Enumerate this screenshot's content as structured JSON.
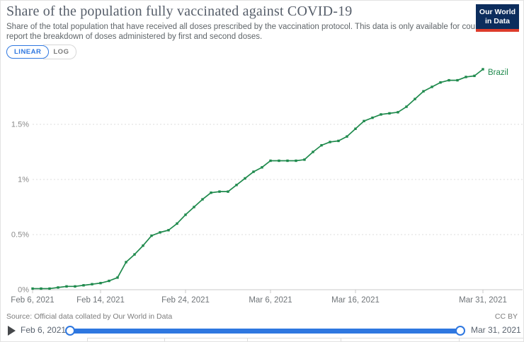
{
  "header": {
    "title": "Share of the population fully vaccinated against COVID-19",
    "subtitle_lines": [
      "Share of the total population that have received all doses prescribed by the vaccination protocol. This data is only available for countries which",
      "report the breakdown of doses administered by first and second doses."
    ],
    "logo": {
      "line1": "Our World",
      "line2": "in Data",
      "bg": "#0c2d5d",
      "accent": "#dd3b2b"
    }
  },
  "controls": {
    "linear_label": "LINEAR",
    "log_label": "LOG",
    "active_scale": "LINEAR"
  },
  "chart_data": {
    "type": "line",
    "title": "Share of the population fully vaccinated against COVID-19",
    "xlabel": "",
    "ylabel": "",
    "ylim": [
      0,
      2.05
    ],
    "grid": true,
    "grid_color": "#dcdcdc",
    "axis_color": "#c8c8c8",
    "x_range_days": 53,
    "yticks": [
      {
        "value": 0,
        "label": "0%"
      },
      {
        "value": 0.5,
        "label": "0.5%"
      },
      {
        "value": 1,
        "label": "1%"
      },
      {
        "value": 1.5,
        "label": "1.5%"
      }
    ],
    "xticks": [
      {
        "day": 0,
        "label": "Feb 6, 2021"
      },
      {
        "day": 8,
        "label": "Feb 14, 2021"
      },
      {
        "day": 18,
        "label": "Feb 24, 2021"
      },
      {
        "day": 28,
        "label": "Mar 6, 2021"
      },
      {
        "day": 38,
        "label": "Mar 16, 2021"
      },
      {
        "day": 53,
        "label": "Mar 31, 2021"
      }
    ],
    "series": [
      {
        "name": "Brazil",
        "color": "#1f8a4d",
        "dates": [
          "2021-02-06",
          "2021-02-07",
          "2021-02-08",
          "2021-02-09",
          "2021-02-10",
          "2021-02-11",
          "2021-02-12",
          "2021-02-13",
          "2021-02-14",
          "2021-02-15",
          "2021-02-16",
          "2021-02-17",
          "2021-02-18",
          "2021-02-19",
          "2021-02-20",
          "2021-02-21",
          "2021-02-22",
          "2021-02-23",
          "2021-02-24",
          "2021-02-25",
          "2021-02-26",
          "2021-02-27",
          "2021-02-28",
          "2021-03-01",
          "2021-03-02",
          "2021-03-03",
          "2021-03-04",
          "2021-03-05",
          "2021-03-06",
          "2021-03-07",
          "2021-03-08",
          "2021-03-09",
          "2021-03-10",
          "2021-03-11",
          "2021-03-12",
          "2021-03-13",
          "2021-03-14",
          "2021-03-15",
          "2021-03-16",
          "2021-03-17",
          "2021-03-18",
          "2021-03-19",
          "2021-03-20",
          "2021-03-21",
          "2021-03-22",
          "2021-03-23",
          "2021-03-24",
          "2021-03-25",
          "2021-03-26",
          "2021-03-27",
          "2021-03-28",
          "2021-03-29",
          "2021-03-30",
          "2021-03-31"
        ],
        "values": [
          0.01,
          0.01,
          0.01,
          0.02,
          0.03,
          0.03,
          0.04,
          0.05,
          0.06,
          0.08,
          0.11,
          0.25,
          0.32,
          0.4,
          0.49,
          0.52,
          0.54,
          0.6,
          0.68,
          0.75,
          0.82,
          0.88,
          0.89,
          0.89,
          0.95,
          1.01,
          1.07,
          1.11,
          1.17,
          1.17,
          1.17,
          1.17,
          1.18,
          1.25,
          1.31,
          1.34,
          1.35,
          1.39,
          1.46,
          1.53,
          1.56,
          1.59,
          1.6,
          1.61,
          1.66,
          1.73,
          1.8,
          1.84,
          1.88,
          1.9,
          1.9,
          1.93,
          1.94,
          2.0
        ]
      }
    ],
    "legend_position": "end-of-line"
  },
  "footer": {
    "source": "Source: Official data collated by Our World in Data",
    "license": "CC BY"
  },
  "timeline": {
    "start_label": "Feb 6, 2021",
    "end_label": "Mar 31, 2021"
  },
  "colors": {
    "accent_blue": "#2e77e0",
    "line_green": "#1f8a4d",
    "logo_navy": "#0c2d5d",
    "logo_red": "#dd3b2b"
  }
}
